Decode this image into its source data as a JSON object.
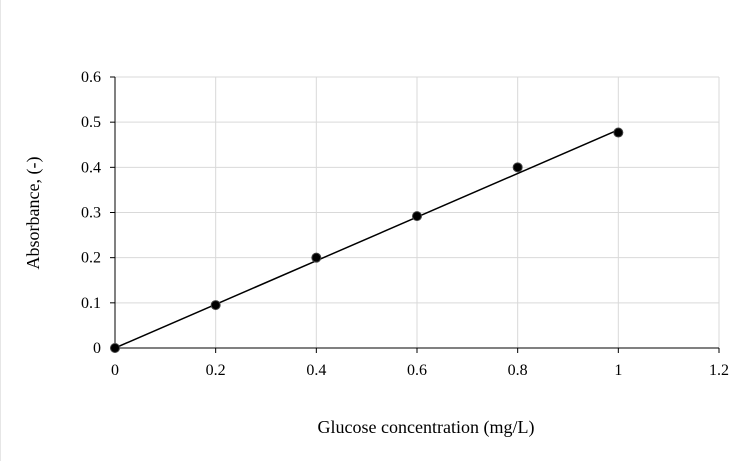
{
  "chart_data": {
    "type": "scatter",
    "title": "",
    "xlabel": "Glucose concentration (mg/L)",
    "ylabel": "Absorbance, (-)",
    "xlim": [
      0,
      1.2
    ],
    "ylim": [
      0,
      0.6
    ],
    "x_ticks": [
      "0",
      "0.2",
      "0.4",
      "0.6",
      "0.8",
      "1",
      "1.2"
    ],
    "y_ticks": [
      "0",
      "0.1",
      "0.2",
      "0.3",
      "0.4",
      "0.5",
      "0.6"
    ],
    "grid": true,
    "legend": "none",
    "series": [
      {
        "x": [
          0,
          0.2,
          0.4,
          0.6,
          0.8,
          1.0
        ],
        "y": [
          0.0,
          0.095,
          0.2,
          0.292,
          0.4,
          0.477
        ]
      }
    ],
    "trendline": {
      "type": "linear",
      "x": [
        0,
        1.0
      ],
      "y": [
        0.0,
        0.483
      ]
    },
    "colors": {
      "marker": "#000000",
      "line": "#000000",
      "grid": "#d9d9d9",
      "axis": "#000000"
    }
  }
}
